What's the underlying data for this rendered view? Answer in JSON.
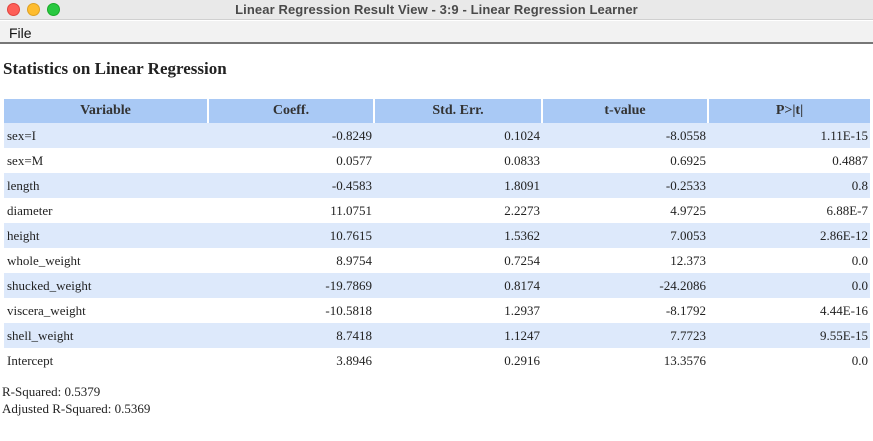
{
  "window": {
    "title": "Linear Regression Result View - 3:9 - Linear Regression Learner"
  },
  "menu": {
    "file_label": "File"
  },
  "report": {
    "heading": "Statistics on Linear Regression",
    "columns": [
      "Variable",
      "Coeff.",
      "Std. Err.",
      "t-value",
      "P>|t|"
    ],
    "rows": [
      [
        "sex=I",
        "-0.8249",
        "0.1024",
        "-8.0558",
        "1.11E-15"
      ],
      [
        "sex=M",
        "0.0577",
        "0.0833",
        "0.6925",
        "0.4887"
      ],
      [
        "length",
        "-0.4583",
        "1.8091",
        "-0.2533",
        "0.8"
      ],
      [
        "diameter",
        "11.0751",
        "2.2273",
        "4.9725",
        "6.88E-7"
      ],
      [
        "height",
        "10.7615",
        "1.5362",
        "7.0053",
        "2.86E-12"
      ],
      [
        "whole_weight",
        "8.9754",
        "0.7254",
        "12.373",
        "0.0"
      ],
      [
        "shucked_weight",
        "-19.7869",
        "0.8174",
        "-24.2086",
        "0.0"
      ],
      [
        "viscera_weight",
        "-10.5818",
        "1.2937",
        "-8.1792",
        "4.44E-16"
      ],
      [
        "shell_weight",
        "8.7418",
        "1.1247",
        "7.7723",
        "9.55E-15"
      ],
      [
        "Intercept",
        "3.8946",
        "0.2916",
        "13.3576",
        "0.0"
      ]
    ],
    "r_squared": "R-Squared: 0.5379",
    "adjusted_r_squared": "Adjusted R-Squared: 0.5369"
  },
  "colors": {
    "header_blue": "#a9c9f5",
    "row_alt_blue": "#dde9fb"
  }
}
